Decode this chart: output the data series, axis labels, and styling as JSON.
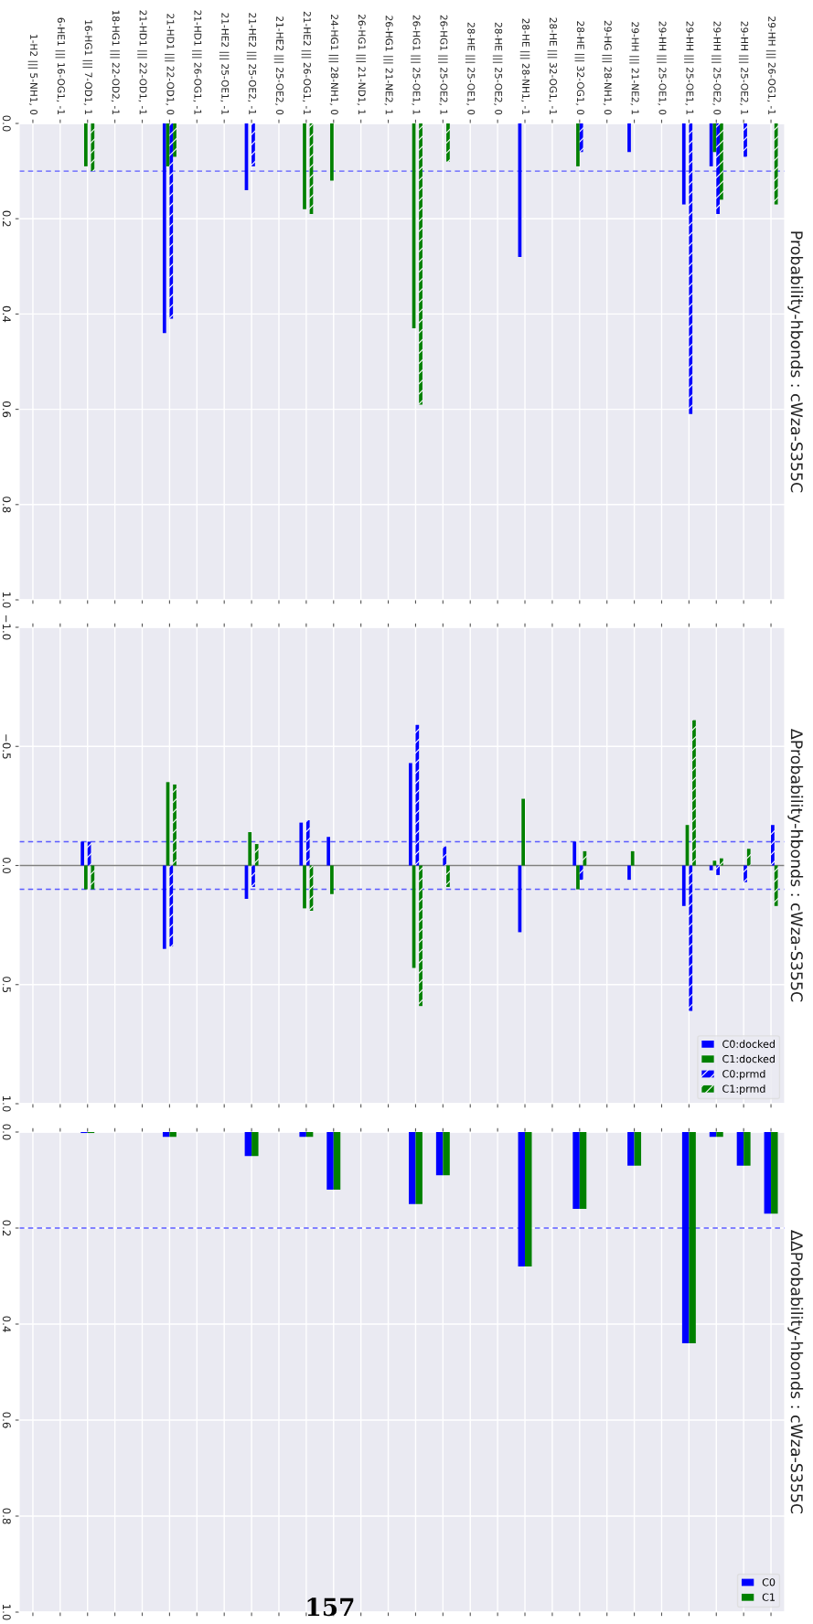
{
  "chart_data": [
    {
      "type": "bar",
      "title": "Probability-hbonds : cWza-S355C",
      "categories": [
        "1-H2 ||| 5-NH1, 0",
        "6-HE1 ||| 16-OG1, -1",
        "16-HG1 ||| 7-OD1, 1",
        "18-HG1 ||| 22-OD2, -1",
        "21-HD1 ||| 22-OD1, -1",
        "21-HD1 ||| 22-OD1, 0",
        "21-HD1 ||| 26-OG1, -1",
        "21-HE2 ||| 25-OE1, -1",
        "21-HE2 ||| 25-OE2, -1",
        "21-HE2 ||| 25-OE2, 0",
        "21-HE2 ||| 26-OG1, -1",
        "24-HG1 ||| 28-NH1, 0",
        "26-HG1 ||| 21-ND1, 1",
        "26-HG1 ||| 21-NE2, 1",
        "26-HG1 ||| 25-OE1, 1",
        "26-HG1 ||| 25-OE2, 1",
        "28-HE ||| 25-OE1, 0",
        "28-HE ||| 25-OE2, 0",
        "28-HE ||| 28-NH1, -1",
        "28-HE ||| 32-OG1, -1",
        "28-HE ||| 32-OG1, 0",
        "29-HG ||| 28-NH1, 0",
        "29-HH ||| 21-NE2, 1",
        "29-HH ||| 25-OE1, 0",
        "29-HH ||| 25-OE1, 1",
        "29-HH ||| 25-OE2, 0",
        "29-HH ||| 25-OE2, 1",
        "29-HH ||| 26-OG1, -1"
      ],
      "series": [
        {
          "color": "#0000ff",
          "values": [
            null,
            null,
            null,
            null,
            null,
            0.44,
            null,
            null,
            0.14,
            null,
            null,
            null,
            null,
            null,
            null,
            null,
            null,
            null,
            0.28,
            null,
            null,
            null,
            0.06,
            null,
            0.17,
            0.09,
            null,
            null
          ]
        },
        {
          "color": "#008000",
          "values": [
            null,
            null,
            0.09,
            null,
            null,
            0.09,
            null,
            null,
            null,
            null,
            0.18,
            0.12,
            null,
            null,
            0.43,
            null,
            null,
            null,
            null,
            null,
            0.09,
            null,
            null,
            null,
            null,
            0.06,
            null,
            null
          ]
        },
        {
          "color": "#0000ff",
          "values": [
            null,
            null,
            null,
            null,
            null,
            0.41,
            null,
            null,
            0.09,
            null,
            null,
            null,
            null,
            null,
            null,
            null,
            null,
            null,
            null,
            null,
            0.06,
            null,
            null,
            null,
            0.61,
            0.19,
            0.07,
            null
          ]
        },
        {
          "color": "#008000",
          "values": [
            null,
            null,
            0.1,
            null,
            null,
            0.07,
            null,
            null,
            null,
            null,
            0.19,
            null,
            null,
            null,
            0.59,
            0.08,
            null,
            null,
            null,
            null,
            null,
            null,
            null,
            null,
            null,
            0.16,
            null,
            0.17
          ]
        }
      ],
      "ylim": [
        1.0,
        0.0
      ],
      "yticks": [
        {
          "value": 0,
          "label": "0.0"
        },
        0.2,
        0.4,
        0.6,
        0.8,
        {
          "value": 1,
          "label": "1.0"
        }
      ],
      "grid": true,
      "ref_lines": [
        {
          "axis": "y",
          "value": 0.1,
          "color": "#5a5aff",
          "line_style": "dashed"
        }
      ]
    },
    {
      "type": "bar",
      "title": "ΔProbability-hbonds : cWza-S355C",
      "categories": [
        null,
        null,
        null,
        null,
        null,
        null,
        null,
        null,
        null,
        null,
        null,
        null,
        null,
        null,
        null,
        null,
        null,
        null,
        null,
        null,
        null,
        null,
        null,
        null,
        null,
        null,
        null,
        null
      ],
      "series": [
        {
          "name": "C0:docked",
          "color": "#0000ff",
          "values": [
            null,
            null,
            -0.1,
            null,
            null,
            0.35,
            null,
            null,
            0.14,
            null,
            -0.18,
            -0.12,
            null,
            null,
            -0.43,
            null,
            null,
            null,
            0.28,
            null,
            -0.1,
            null,
            0.06,
            null,
            0.17,
            0.02,
            null,
            null
          ]
        },
        {
          "name": "C1:docked",
          "color": "#008000",
          "values": [
            null,
            null,
            0.1,
            null,
            null,
            -0.35,
            null,
            null,
            -0.14,
            null,
            0.18,
            0.12,
            null,
            null,
            0.43,
            null,
            null,
            null,
            -0.28,
            null,
            0.1,
            null,
            -0.06,
            null,
            -0.17,
            -0.02,
            null,
            null
          ]
        },
        {
          "name": "C0:prmd",
          "color": "#0000ff",
          "values": [
            null,
            null,
            -0.1,
            null,
            null,
            0.34,
            null,
            null,
            0.09,
            null,
            -0.19,
            null,
            null,
            null,
            -0.59,
            -0.08,
            null,
            null,
            null,
            null,
            0.06,
            null,
            null,
            null,
            0.61,
            0.04,
            0.07,
            -0.17
          ]
        },
        {
          "name": "C1:prmd",
          "color": "#008000",
          "values": [
            null,
            null,
            0.1,
            null,
            null,
            -0.34,
            null,
            null,
            -0.09,
            null,
            0.19,
            null,
            null,
            null,
            0.59,
            0.09,
            null,
            null,
            null,
            null,
            -0.06,
            null,
            null,
            null,
            -0.61,
            -0.03,
            -0.07,
            0.17
          ]
        }
      ],
      "ylim": [
        1.0,
        -1.0
      ],
      "yticks": [
        {
          "value": -1.0,
          "label": "−1.0"
        },
        {
          "value": -0.5,
          "label": "−0.5"
        },
        {
          "value": 0.0,
          "label": "0.0"
        },
        {
          "value": 0.5,
          "label": "0.5"
        },
        {
          "value": 1.0,
          "label": "1.0"
        }
      ],
      "grid": true,
      "legend": "bottom right",
      "tick_labels": "y",
      "ref_lines": [
        {
          "axis": "y",
          "value": 0.0,
          "color": "#808080",
          "line_style": "solid"
        },
        {
          "axis": "y",
          "value": 0.1,
          "color": "#5a5aff",
          "line_style": "dashed"
        },
        {
          "axis": "y",
          "value": -0.1,
          "color": "#5a5aff",
          "line_style": "dashed"
        }
      ]
    },
    {
      "type": "bar",
      "title": "ΔΔProbability-hbonds : cWza-S355C",
      "categories": [
        null,
        null,
        null,
        null,
        null,
        null,
        null,
        null,
        null,
        null,
        null,
        null,
        null,
        null,
        null,
        null,
        null,
        null,
        null,
        null,
        null,
        null,
        null,
        null,
        null,
        null,
        null,
        null
      ],
      "series": [
        {
          "name": "C0",
          "color": "#0000ff",
          "values": [
            null,
            null,
            0.002,
            null,
            null,
            0.01,
            null,
            null,
            0.05,
            null,
            0.01,
            0.12,
            null,
            null,
            0.15,
            0.09,
            null,
            null,
            0.28,
            null,
            0.16,
            null,
            0.07,
            null,
            0.44,
            0.01,
            0.07,
            0.17
          ]
        },
        {
          "name": "C1",
          "color": "#008000",
          "values": [
            null,
            null,
            0.002,
            null,
            null,
            0.01,
            null,
            null,
            0.05,
            null,
            0.01,
            0.12,
            null,
            null,
            0.15,
            0.09,
            null,
            null,
            0.28,
            null,
            0.16,
            null,
            0.07,
            null,
            0.44,
            0.01,
            0.07,
            0.17
          ]
        }
      ],
      "ylim": [
        1.0,
        0.0
      ],
      "yticks": [
        {
          "value": 0,
          "label": "0.0"
        },
        0.2,
        0.4,
        0.6,
        0.8,
        {
          "value": 1,
          "label": "1.0"
        }
      ],
      "grid": true,
      "legend": "bottom right",
      "tick_labels": "y",
      "ref_lines": [
        {
          "axis": "y",
          "value": 0.2,
          "color": "#5a5aff",
          "line_style": "dashed"
        }
      ],
      "annotations": [
        "157"
      ]
    }
  ]
}
